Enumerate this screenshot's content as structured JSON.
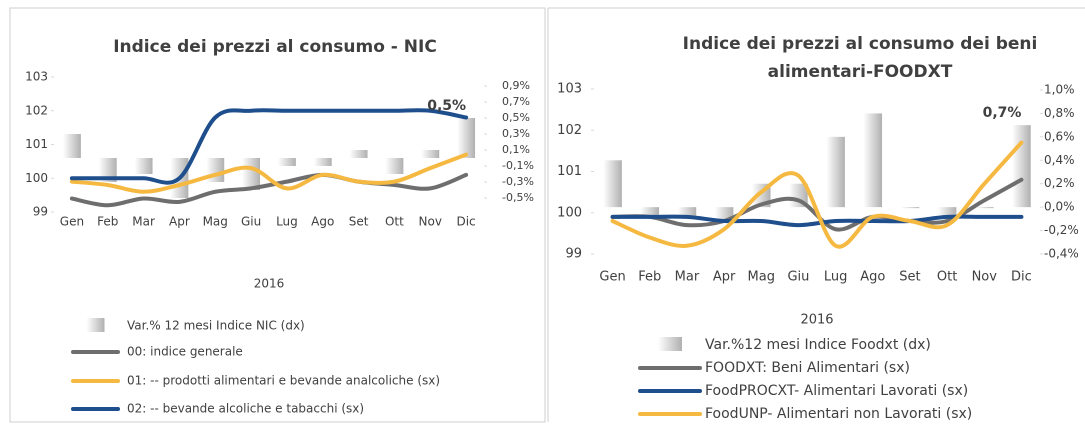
{
  "chart_data": [
    {
      "type": "combo",
      "title": [
        "Indice dei prezzi al consumo - NIC"
      ],
      "x_label": "2016",
      "categories": [
        "Gen",
        "Feb",
        "Mar",
        "Apr",
        "Mag",
        "Giu",
        "Lug",
        "Ago",
        "Set",
        "Ott",
        "Nov",
        "Dic"
      ],
      "series": [
        {
          "name": "Var.% 12 mesi Indice NIC (dx)",
          "kind": "bar",
          "axis": "y2",
          "color": "#bdbdbd",
          "values": [
            0.3,
            -0.3,
            -0.2,
            -0.5,
            -0.3,
            -0.4,
            -0.1,
            -0.1,
            0.1,
            -0.2,
            0.1,
            0.5
          ]
        },
        {
          "name": "00: indice generale",
          "kind": "line",
          "color": "#6e6e6e",
          "values": [
            99.4,
            99.2,
            99.4,
            99.3,
            99.6,
            99.7,
            99.9,
            100.1,
            99.9,
            99.8,
            99.7,
            100.1
          ]
        },
        {
          "name": "01:  -- prodotti alimentari e bevande analcoliche (sx)",
          "kind": "line",
          "color": "#f5b942",
          "values": [
            99.9,
            99.8,
            99.6,
            99.8,
            100.1,
            100.3,
            99.7,
            100.1,
            99.9,
            99.9,
            100.3,
            100.7
          ]
        },
        {
          "name": "02:  -- bevande alcoliche e tabacchi (sx)",
          "kind": "line",
          "color": "#1f4e8c",
          "values": [
            100,
            100,
            100,
            100,
            101.8,
            102,
            102,
            102,
            102,
            102,
            102,
            101.8
          ]
        }
      ],
      "annotation": "0,5%",
      "ylim": [
        99,
        103
      ],
      "yticks": [
        99,
        100,
        101,
        102,
        103
      ],
      "y2lim": [
        -0.5,
        0.9
      ],
      "y2ticks": [
        {
          "value": -0.5,
          "label": "-0,5%"
        },
        {
          "value": -0.3,
          "label": "-0,3%"
        },
        {
          "value": -0.1,
          "label": "-0,1%"
        },
        {
          "value": 0.1,
          "label": "0,1%"
        },
        {
          "value": 0.3,
          "label": "0,3%"
        },
        {
          "value": 0.5,
          "label": "0,5%"
        },
        {
          "value": 0.7,
          "label": "0,7%"
        },
        {
          "value": 0.9,
          "label": "0,9%"
        }
      ]
    },
    {
      "type": "combo",
      "title": [
        "Indice dei prezzi al consumo dei beni",
        "alimentari-FOODXT"
      ],
      "x_label": "2016",
      "categories": [
        "Gen",
        "Feb",
        "Mar",
        "Apr",
        "Mag",
        "Giu",
        "Lug",
        "Ago",
        "Set",
        "Ott",
        "Nov",
        "Dic"
      ],
      "series": [
        {
          "name": "Var.%12 mesi Indice Foodxt (dx)",
          "kind": "bar",
          "axis": "y2",
          "color": "#bdbdbd",
          "values": [
            0.4,
            -0.1,
            -0.1,
            -0.1,
            0.2,
            0.2,
            0.6,
            0.8,
            0.0,
            -0.1,
            0.0,
            0.7
          ]
        },
        {
          "name": "FOODXT: Beni Alimentari (sx)",
          "kind": "line",
          "color": "#6e6e6e",
          "values": [
            99.9,
            99.9,
            99.7,
            99.8,
            100.2,
            100.3,
            99.6,
            99.9,
            99.8,
            99.8,
            100.3,
            100.8
          ]
        },
        {
          "name": "FoodPROCXT- Alimentari Lavorati (sx)",
          "kind": "line",
          "color": "#1f4e8c",
          "values": [
            99.9,
            99.9,
            99.9,
            99.8,
            99.8,
            99.7,
            99.8,
            99.8,
            99.8,
            99.9,
            99.9,
            99.9
          ]
        },
        {
          "name": "FoodUNP- Alimentari non Lavorati (sx)",
          "kind": "line",
          "color": "#f5b942",
          "values": [
            99.8,
            99.4,
            99.2,
            99.6,
            100.5,
            100.9,
            99.2,
            99.9,
            99.8,
            99.7,
            100.7,
            101.7
          ]
        }
      ],
      "annotation": "0,7%",
      "ylim": [
        99,
        103
      ],
      "yticks": [
        99,
        100,
        101,
        102,
        103
      ],
      "y2lim": [
        -0.4,
        1.0
      ],
      "y2ticks": [
        {
          "value": -0.4,
          "label": "-0,4%"
        },
        {
          "value": -0.2,
          "label": "-0,2%"
        },
        {
          "value": 0.0,
          "label": "0,0%"
        },
        {
          "value": 0.2,
          "label": "0,2%"
        },
        {
          "value": 0.4,
          "label": "0,4%"
        },
        {
          "value": 0.6,
          "label": "0,6%"
        },
        {
          "value": 0.8,
          "label": "0,8%"
        },
        {
          "value": 1.0,
          "label": "1,0%"
        }
      ]
    }
  ]
}
